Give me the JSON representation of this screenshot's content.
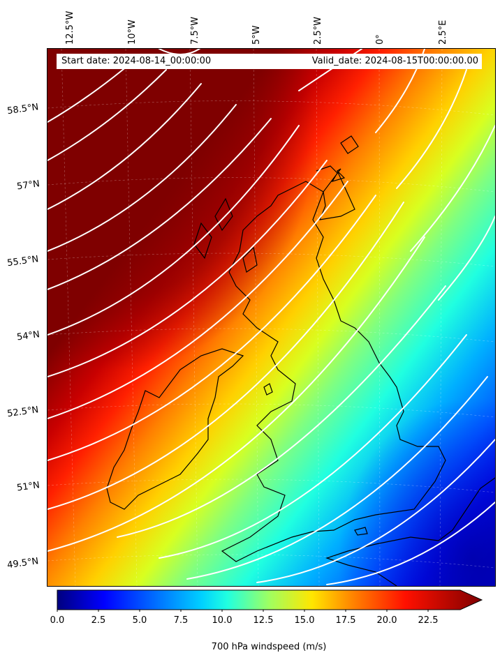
{
  "map": {
    "start_text": "Start date: 2024-08-14_00:00:00",
    "valid_text": "Valid_date: 2024-08-15T00:00:00.00",
    "lon_labels": [
      "12.5°W",
      "10°W",
      "7.5°W",
      "5°W",
      "2.5°W",
      "0°",
      "2.5°E"
    ],
    "lat_labels": [
      "58.5°N",
      "57°N",
      "55.5°N",
      "54°N",
      "52.5°N",
      "51°N",
      "49.5°N"
    ],
    "extent": {
      "lon_min": -14.0,
      "lon_max": 3.6,
      "lat_min": 49.0,
      "lat_max": 59.6
    },
    "field": "700 hPa windspeed",
    "max_wind_region": "north-west (dark red, > 22.5 m/s)",
    "min_wind_region": "south-east (dark blue, < 5 m/s)",
    "streamline_color": "#ffffff",
    "coastline_color": "#000000"
  },
  "colorbar": {
    "label": "700 hPa windspeed (m/s)",
    "ticks": [
      "0.0",
      "2.5",
      "5.0",
      "7.5",
      "10.0",
      "12.5",
      "15.0",
      "17.5",
      "20.0",
      "22.5"
    ],
    "min": 0,
    "max": 25,
    "extend": "max",
    "colormap": "jet",
    "colors": [
      "#00007f",
      "#0000ff",
      "#007fff",
      "#00ffff",
      "#7fff7f",
      "#ffff00",
      "#ff7f00",
      "#ff0000",
      "#7f0000"
    ]
  }
}
